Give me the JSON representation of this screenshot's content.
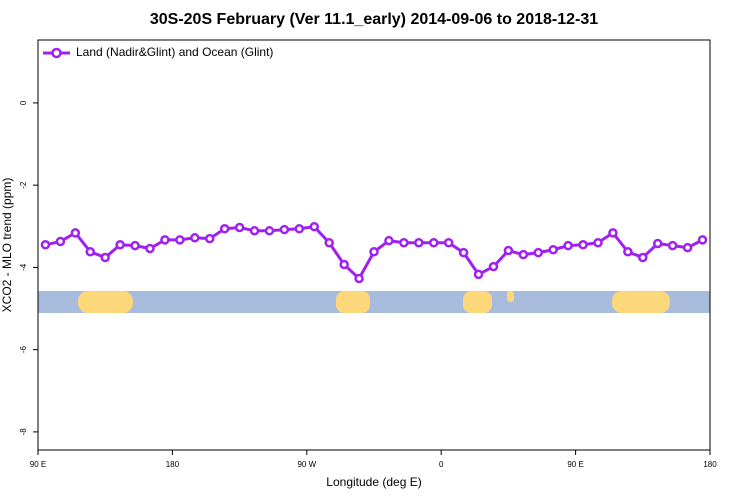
{
  "chart_data": {
    "type": "line",
    "title": "30S-20S February (Ver 11.1_early)   2014-09-06 to 2018-12-31",
    "x_label": "Longitude (deg E)",
    "y_label": "XCO2 - MLO trend (ppm)",
    "x": [
      95,
      105,
      115,
      125,
      135,
      145,
      155,
      165,
      175,
      185,
      195,
      205,
      215,
      225,
      235,
      245,
      255,
      265,
      275,
      285,
      295,
      305,
      315,
      325,
      335,
      345,
      355,
      365,
      375,
      385,
      395,
      405,
      415,
      425,
      435,
      445,
      455,
      465,
      475,
      485,
      495,
      505,
      515,
      525,
      535
    ],
    "series": [
      {
        "name": "Land (Nadir&Glint) and Ocean (Glint)",
        "color": "#a020f0",
        "values": [
          -3.45,
          -3.37,
          -3.16,
          -3.62,
          -3.76,
          -3.45,
          -3.47,
          -3.54,
          -3.33,
          -3.33,
          -3.28,
          -3.3,
          -3.06,
          -3.03,
          -3.11,
          -3.11,
          -3.08,
          -3.06,
          -3.01,
          -3.4,
          -3.93,
          -4.27,
          -3.62,
          -3.35,
          -3.4,
          -3.4,
          -3.4,
          -3.4,
          -3.64,
          -4.17,
          -3.98,
          -3.59,
          -3.69,
          -3.64,
          -3.57,
          -3.47,
          -3.45,
          -3.4,
          -3.16,
          -3.62,
          -3.76,
          -3.42,
          -3.47,
          -3.52,
          -3.33
        ]
      }
    ],
    "xlim": [
      90,
      540
    ],
    "xticks": [
      {
        "value": 90,
        "label": "90 E"
      },
      {
        "value": 180,
        "label": "180"
      },
      {
        "value": 270,
        "label": "90 W"
      },
      {
        "value": 360,
        "label": "0"
      },
      {
        "value": 450,
        "label": "90 E"
      },
      {
        "value": 540,
        "label": "180"
      }
    ],
    "ylim": [
      -8.44,
      1.53
    ],
    "yticks": [
      0,
      -2,
      -4,
      -6,
      -8
    ],
    "legend": "top-left"
  }
}
